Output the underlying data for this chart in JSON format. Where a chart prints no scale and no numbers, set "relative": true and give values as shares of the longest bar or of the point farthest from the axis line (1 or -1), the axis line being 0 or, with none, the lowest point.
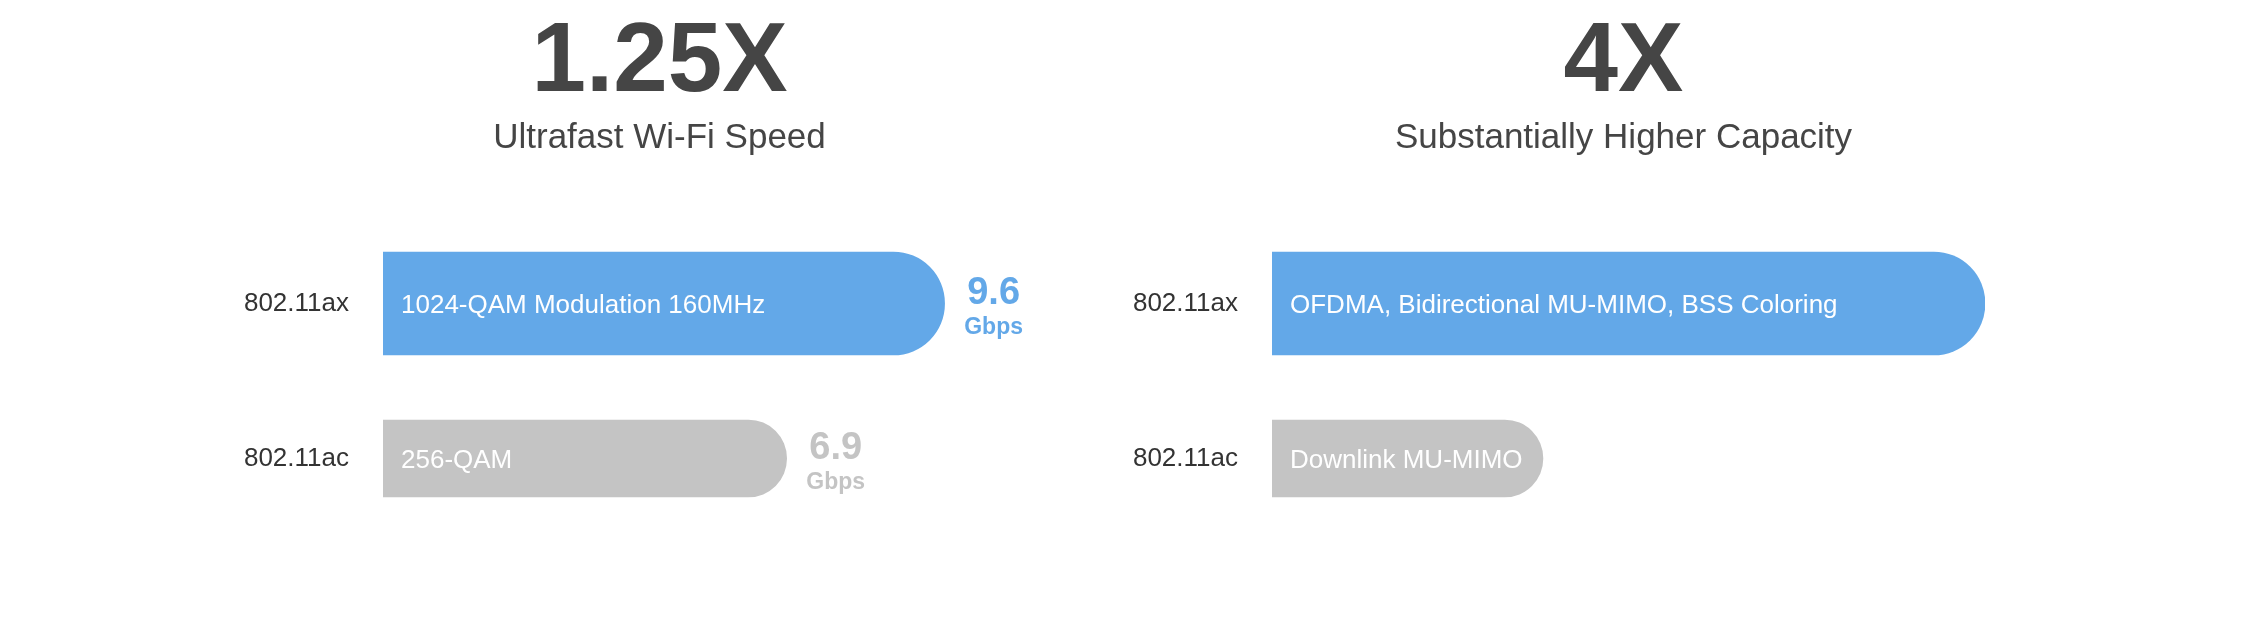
{
  "chart_data": [
    {
      "type": "bar",
      "orientation": "horizontal",
      "title": "1.25X",
      "subtitle": "Ultrafast Wi-Fi Speed",
      "categories": [
        "802.11ax",
        "802.11ac"
      ],
      "values": [
        9.6,
        6.9
      ],
      "colors": [
        "#63a8e8",
        "#c4c4c4"
      ],
      "value_labels": [
        "9.6 Gbps",
        "6.9 Gbps"
      ],
      "annotations": [
        "1024-QAM Modulation 160MHz",
        "256-QAM"
      ],
      "tick_labels": "y"
    },
    {
      "type": "bar",
      "orientation": "horizontal",
      "title": "4X",
      "subtitle": "Substantially Higher Capacity",
      "categories": [
        "802.11ax",
        "802.11ac"
      ],
      "values": [
        1,
        0.38
      ],
      "colors": [
        "#63a8e8",
        "#c4c4c4"
      ],
      "relative": true,
      "annotations": [
        "OFDMA, Bidirectional MU-MIMO, BSS Coloring",
        "Downlink MU-MIMO"
      ]
    }
  ]
}
